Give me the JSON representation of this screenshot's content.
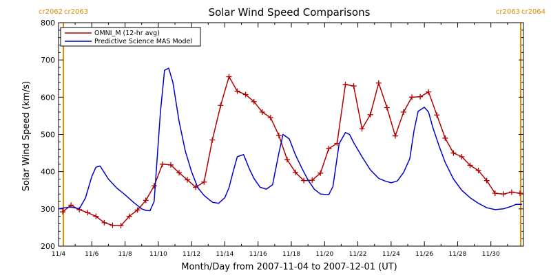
{
  "chart_data": {
    "type": "line",
    "title": "Solar Wind Speed Comparisons",
    "xlabel": "Month/Day from 2007-11-04 to 2007-12-01 (UT)",
    "ylabel": "Solar Wind Speed (km/s)",
    "xlim": [
      "2007-11-04",
      "2007-12-01T23:00"
    ],
    "ylim": [
      200,
      800
    ],
    "y_ticks": [
      200,
      300,
      400,
      500,
      600,
      700,
      800
    ],
    "x_tick_labels": [
      "11/4",
      "11/6",
      "11/8",
      "11/10",
      "11/12",
      "11/14",
      "11/16",
      "11/18",
      "11/20",
      "11/22",
      "11/24",
      "11/26",
      "11/28",
      "11/30"
    ],
    "x_tick_dates": [
      "2007-11-04",
      "2007-11-06",
      "2007-11-08",
      "2007-11-10",
      "2007-11-12",
      "2007-11-14",
      "2007-11-16",
      "2007-11-18",
      "2007-11-20",
      "2007-11-22",
      "2007-11-24",
      "2007-11-26",
      "2007-11-28",
      "2007-11-30"
    ],
    "legend_position": "top-left",
    "grid": false,
    "rotation_markers": [
      {
        "date": "2007-11-04T07:00",
        "left_label": "cr2062",
        "right_label": "cr2063",
        "color": "#e08a00"
      },
      {
        "date": "2007-12-01T19:00",
        "left_label": "cr2063",
        "right_label": "cr2064",
        "color": "#e08a00"
      }
    ],
    "series": [
      {
        "name": "OMNI_M (12-hr avg)",
        "color": "#b00000",
        "marker": "plus",
        "x": [
          "2007-11-04T06:00",
          "2007-11-04T18:00",
          "2007-11-05T06:00",
          "2007-11-05T18:00",
          "2007-11-06T06:00",
          "2007-11-06T18:00",
          "2007-11-07T06:00",
          "2007-11-07T18:00",
          "2007-11-08T06:00",
          "2007-11-08T18:00",
          "2007-11-09T06:00",
          "2007-11-09T18:00",
          "2007-11-10T06:00",
          "2007-11-10T18:00",
          "2007-11-11T06:00",
          "2007-11-11T18:00",
          "2007-11-12T06:00",
          "2007-11-12T18:00",
          "2007-11-13T06:00",
          "2007-11-13T18:00",
          "2007-11-14T06:00",
          "2007-11-14T18:00",
          "2007-11-15T06:00",
          "2007-11-15T18:00",
          "2007-11-16T06:00",
          "2007-11-16T18:00",
          "2007-11-17T06:00",
          "2007-11-17T18:00",
          "2007-11-18T06:00",
          "2007-11-18T18:00",
          "2007-11-19T06:00",
          "2007-11-19T18:00",
          "2007-11-20T06:00",
          "2007-11-20T18:00",
          "2007-11-21T06:00",
          "2007-11-21T18:00",
          "2007-11-22T06:00",
          "2007-11-22T18:00",
          "2007-11-23T06:00",
          "2007-11-23T18:00",
          "2007-11-24T06:00",
          "2007-11-24T18:00",
          "2007-11-25T06:00",
          "2007-11-25T18:00",
          "2007-11-26T06:00",
          "2007-11-26T18:00",
          "2007-11-27T06:00",
          "2007-11-27T18:00",
          "2007-11-28T06:00",
          "2007-11-28T18:00",
          "2007-11-29T06:00",
          "2007-11-29T18:00",
          "2007-11-30T06:00",
          "2007-11-30T18:00",
          "2007-12-01T06:00",
          "2007-12-01T18:00"
        ],
        "y": [
          292,
          310,
          298,
          290,
          280,
          263,
          256,
          255,
          280,
          297,
          323,
          362,
          420,
          418,
          397,
          378,
          358,
          372,
          485,
          578,
          655,
          616,
          607,
          588,
          560,
          545,
          497,
          432,
          398,
          376,
          377,
          396,
          462,
          476,
          634,
          630,
          515,
          553,
          638,
          572,
          496,
          560,
          600,
          601,
          614,
          552,
          490,
          450,
          440,
          417,
          403,
          376,
          342,
          340,
          345,
          342
        ]
      },
      {
        "name": "Predictive Science MAS Model",
        "color": "#0000cc",
        "marker": "none",
        "x": [
          "2007-11-04T00:00",
          "2007-11-04T09:00",
          "2007-11-04T18:00",
          "2007-11-05T06:00",
          "2007-11-05T15:00",
          "2007-11-06T00:00",
          "2007-11-06T06:00",
          "2007-11-06T12:00",
          "2007-11-07T00:00",
          "2007-11-07T12:00",
          "2007-11-08T00:00",
          "2007-11-08T12:00",
          "2007-11-09T00:00",
          "2007-11-09T06:00",
          "2007-11-09T12:00",
          "2007-11-09T18:00",
          "2007-11-10T03:00",
          "2007-11-10T09:00",
          "2007-11-10T15:00",
          "2007-11-10T21:00",
          "2007-11-11T06:00",
          "2007-11-11T15:00",
          "2007-11-12T00:00",
          "2007-11-12T09:00",
          "2007-11-12T18:00",
          "2007-11-13T06:00",
          "2007-11-13T15:00",
          "2007-11-14T00:00",
          "2007-11-14T06:00",
          "2007-11-14T12:00",
          "2007-11-14T18:00",
          "2007-11-15T03:00",
          "2007-11-15T12:00",
          "2007-11-15T18:00",
          "2007-11-16T03:00",
          "2007-11-16T12:00",
          "2007-11-16T21:00",
          "2007-11-17T06:00",
          "2007-11-17T12:00",
          "2007-11-17T21:00",
          "2007-11-18T06:00",
          "2007-11-18T15:00",
          "2007-11-19T00:00",
          "2007-11-19T09:00",
          "2007-11-19T18:00",
          "2007-11-20T06:00",
          "2007-11-20T12:00",
          "2007-11-20T21:00",
          "2007-11-21T06:00",
          "2007-11-21T12:00",
          "2007-11-21T18:00",
          "2007-11-22T06:00",
          "2007-11-22T18:00",
          "2007-11-23T06:00",
          "2007-11-23T15:00",
          "2007-11-24T00:00",
          "2007-11-24T09:00",
          "2007-11-24T18:00",
          "2007-11-25T03:00",
          "2007-11-25T09:00",
          "2007-11-25T15:00",
          "2007-11-26T00:00",
          "2007-11-26T06:00",
          "2007-11-26T12:00",
          "2007-11-26T21:00",
          "2007-11-27T06:00",
          "2007-11-27T18:00",
          "2007-11-28T06:00",
          "2007-11-28T18:00",
          "2007-11-29T06:00",
          "2007-11-29T18:00",
          "2007-11-30T06:00",
          "2007-11-30T18:00",
          "2007-12-01T06:00",
          "2007-12-01T12:00",
          "2007-12-01T21:00"
        ],
        "y": [
          300,
          303,
          305,
          300,
          330,
          387,
          412,
          415,
          380,
          356,
          338,
          318,
          300,
          296,
          295,
          320,
          560,
          672,
          678,
          640,
          535,
          455,
          400,
          357,
          336,
          318,
          315,
          330,
          357,
          400,
          440,
          446,
          405,
          382,
          358,
          353,
          365,
          450,
          500,
          488,
          445,
          410,
          378,
          353,
          340,
          338,
          360,
          475,
          505,
          500,
          478,
          440,
          405,
          382,
          375,
          370,
          375,
          398,
          435,
          510,
          562,
          573,
          560,
          520,
          470,
          425,
          380,
          350,
          330,
          315,
          303,
          298,
          300,
          307,
          312,
          312
        ]
      }
    ]
  }
}
